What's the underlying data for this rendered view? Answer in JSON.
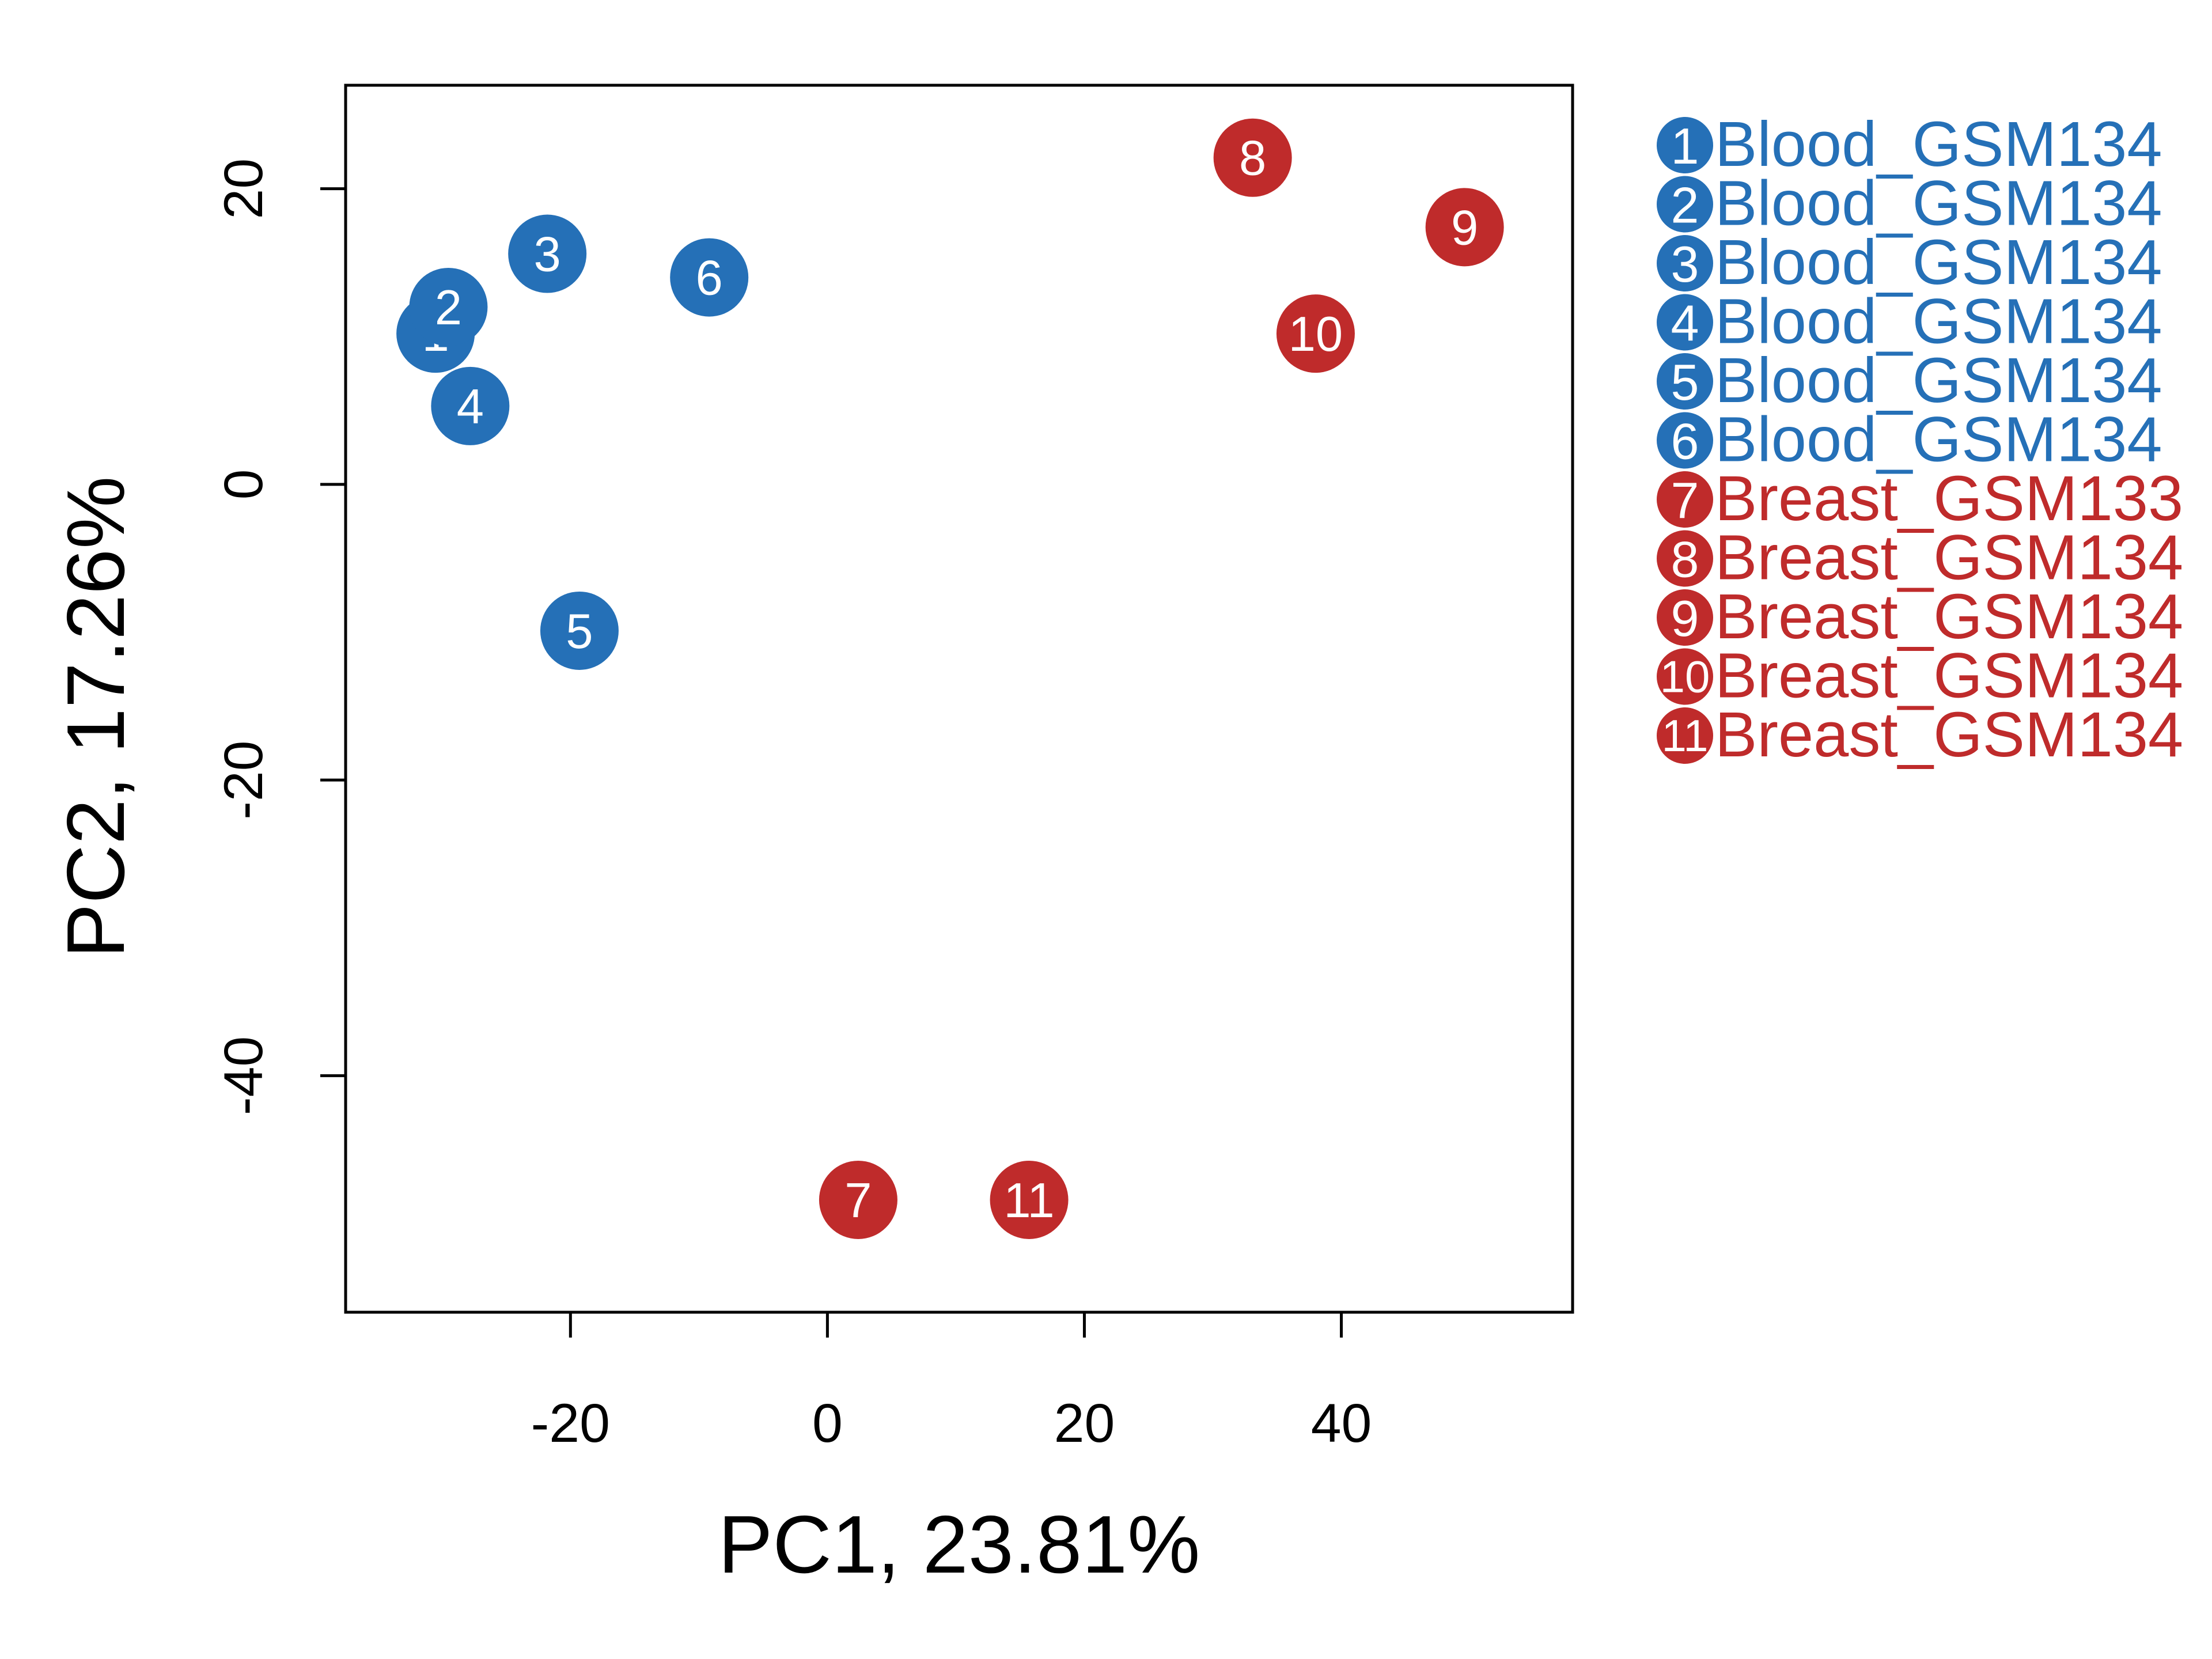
{
  "chart_data": {
    "type": "scatter",
    "xlabel": "PC1, 23.81%",
    "ylabel": "PC2, 17.26%",
    "xlim": [
      -37.5,
      58
    ],
    "ylim": [
      -56,
      27
    ],
    "xticks": [
      -20,
      0,
      20,
      40
    ],
    "yticks": [
      -40,
      -20,
      0,
      20
    ],
    "grid": false,
    "legend_position": "right",
    "colors": {
      "Blood": "#2570b7",
      "Breast": "#bf2b2b"
    },
    "series": [
      {
        "group": "Blood",
        "points": [
          {
            "label": "1",
            "x": -30.5,
            "y": 10.2
          },
          {
            "label": "2",
            "x": -29.5,
            "y": 12.0
          },
          {
            "label": "3",
            "x": -21.8,
            "y": 15.6
          },
          {
            "label": "4",
            "x": -27.8,
            "y": 5.3
          },
          {
            "label": "5",
            "x": -19.3,
            "y": -9.9
          },
          {
            "label": "6",
            "x": -9.2,
            "y": 14.0
          }
        ]
      },
      {
        "group": "Breast",
        "points": [
          {
            "label": "7",
            "x": 2.4,
            "y": -48.4
          },
          {
            "label": "8",
            "x": 33.1,
            "y": 22.1
          },
          {
            "label": "9",
            "x": 49.6,
            "y": 17.4
          },
          {
            "label": "10",
            "x": 38.0,
            "y": 10.2
          },
          {
            "label": "11",
            "x": 15.7,
            "y": -48.4
          }
        ]
      }
    ],
    "legend": [
      {
        "num": "1",
        "text": "Blood_GSM134",
        "group": "Blood"
      },
      {
        "num": "2",
        "text": "Blood_GSM134",
        "group": "Blood"
      },
      {
        "num": "3",
        "text": "Blood_GSM134",
        "group": "Blood"
      },
      {
        "num": "4",
        "text": "Blood_GSM134",
        "group": "Blood"
      },
      {
        "num": "5",
        "text": "Blood_GSM134",
        "group": "Blood"
      },
      {
        "num": "6",
        "text": "Blood_GSM134",
        "group": "Blood"
      },
      {
        "num": "7",
        "text": "Breast_GSM133",
        "group": "Breast"
      },
      {
        "num": "8",
        "text": "Breast_GSM134",
        "group": "Breast"
      },
      {
        "num": "9",
        "text": "Breast_GSM134",
        "group": "Breast"
      },
      {
        "num": "10",
        "text": "Breast_GSM134",
        "group": "Breast"
      },
      {
        "num": "11",
        "text": "Breast_GSM134",
        "group": "Breast"
      }
    ]
  }
}
